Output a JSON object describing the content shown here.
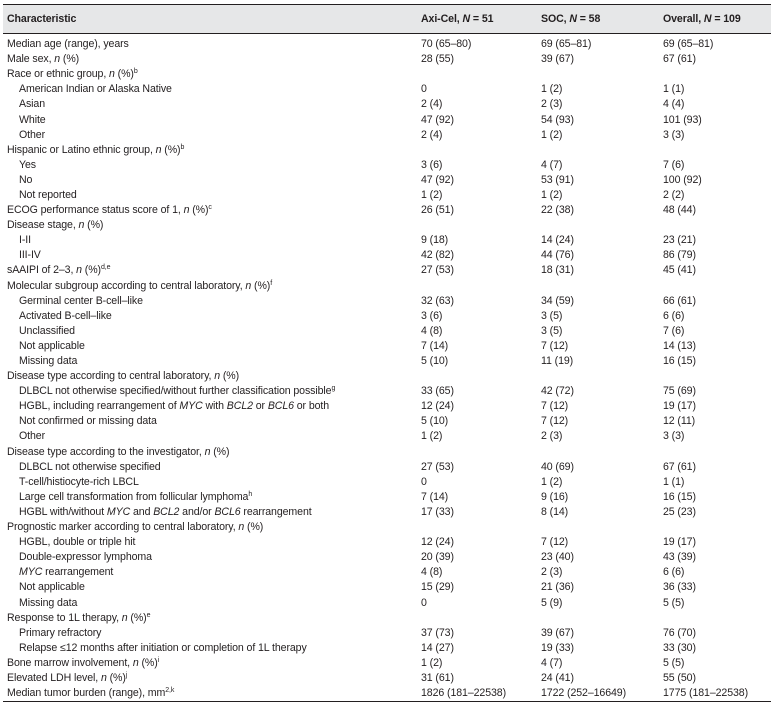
{
  "header": {
    "characteristic": "Characteristic",
    "axi": "Axi-Cel, ",
    "axi_n": "N",
    "axi_val": " = 51",
    "soc": "SOC, ",
    "soc_n": "N",
    "soc_val": " = 58",
    "overall": "Overall, ",
    "overall_n": "N",
    "overall_val": " = 109"
  },
  "rows": [
    {
      "label": "Median age (range), years",
      "axi": "70 (65–80)",
      "soc": "69 (65–81)",
      "overall": "69 (65–81)"
    },
    {
      "label": "Male sex, ",
      "label_it": "n",
      "label_post": " (%)",
      "axi": "28 (55)",
      "soc": "39 (67)",
      "overall": "67 (61)"
    },
    {
      "label": "Race or ethnic group, ",
      "label_it": "n",
      "label_post": " (%)",
      "sup": "b",
      "axi": "",
      "soc": "",
      "overall": ""
    },
    {
      "label": "American Indian or Alaska Native",
      "axi": "0",
      "soc": "1 (2)",
      "overall": "1 (1)"
    },
    {
      "label": "Asian",
      "axi": "2 (4)",
      "soc": "2 (3)",
      "overall": "4 (4)"
    },
    {
      "label": "White",
      "axi": "47 (92)",
      "soc": "54 (93)",
      "overall": "101 (93)"
    },
    {
      "label": "Other",
      "axi": "2 (4)",
      "soc": "1 (2)",
      "overall": "3 (3)"
    },
    {
      "label": "Hispanic or Latino ethnic group, ",
      "label_it": "n",
      "label_post": " (%)",
      "sup": "b",
      "axi": "",
      "soc": "",
      "overall": ""
    },
    {
      "label": "Yes",
      "axi": "3 (6)",
      "soc": "4 (7)",
      "overall": "7 (6)"
    },
    {
      "label": "No",
      "axi": "47 (92)",
      "soc": "53 (91)",
      "overall": "100 (92)"
    },
    {
      "label": "Not reported",
      "axi": "1 (2)",
      "soc": "1 (2)",
      "overall": "2 (2)"
    },
    {
      "label": "ECOG performance status score of 1, ",
      "label_it": "n",
      "label_post": " (%)",
      "sup": "c",
      "axi": "26 (51)",
      "soc": "22 (38)",
      "overall": "48 (44)"
    },
    {
      "label": "Disease stage, ",
      "label_it": "n",
      "label_post": " (%)",
      "axi": "",
      "soc": "",
      "overall": ""
    },
    {
      "label": "I-II",
      "axi": "9 (18)",
      "soc": "14 (24)",
      "overall": "23 (21)"
    },
    {
      "label": "III-IV",
      "axi": "42 (82)",
      "soc": "44 (76)",
      "overall": "86 (79)"
    },
    {
      "label": "sAAIPI of 2–3, ",
      "label_it": "n",
      "label_post": " (%)",
      "sup": "d,e",
      "axi": "27 (53)",
      "soc": "18 (31)",
      "overall": "45 (41)"
    },
    {
      "label": "Molecular subgroup according to central laboratory, ",
      "label_it": "n",
      "label_post": " (%)",
      "sup": "f",
      "axi": "",
      "soc": "",
      "overall": ""
    },
    {
      "label": "Germinal center B-cell–like",
      "axi": "32 (63)",
      "soc": "34 (59)",
      "overall": "66 (61)"
    },
    {
      "label": "Activated B-cell–like",
      "axi": "3 (6)",
      "soc": "3 (5)",
      "overall": "6 (6)"
    },
    {
      "label": "Unclassified",
      "axi": "4 (8)",
      "soc": "3 (5)",
      "overall": "7 (6)"
    },
    {
      "label": "Not applicable",
      "axi": "7 (14)",
      "soc": "7 (12)",
      "overall": "14 (13)"
    },
    {
      "label": "Missing data",
      "axi": "5 (10)",
      "soc": "11 (19)",
      "overall": "16 (15)"
    },
    {
      "label": "Disease type according to central laboratory, ",
      "label_it": "n",
      "label_post": " (%)",
      "axi": "",
      "soc": "",
      "overall": ""
    },
    {
      "label": "DLBCL not otherwise specified/without further classification possible",
      "sup": "g",
      "axi": "33 (65)",
      "soc": "42 (72)",
      "overall": "75 (69)"
    },
    {
      "label": "HGBL, including rearrangement of ",
      "label_it": "MYC",
      "label_post": " with ",
      "label_it2": "BCL2",
      "label_post2": " or ",
      "label_it3": "BCL6",
      "label_post3": " or both",
      "axi": "12 (24)",
      "soc": "7 (12)",
      "overall": "19 (17)"
    },
    {
      "label": "Not confirmed or missing data",
      "axi": "5 (10)",
      "soc": "7 (12)",
      "overall": "12 (11)"
    },
    {
      "label": "Other",
      "axi": "1 (2)",
      "soc": "2 (3)",
      "overall": "3 (3)"
    },
    {
      "label": "Disease type according to the investigator, ",
      "label_it": "n",
      "label_post": " (%)",
      "axi": "",
      "soc": "",
      "overall": ""
    },
    {
      "label": "DLBCL not otherwise specified",
      "axi": "27 (53)",
      "soc": "40 (69)",
      "overall": "67 (61)"
    },
    {
      "label": "T-cell/histiocyte-rich LBCL",
      "axi": "0",
      "soc": "1 (2)",
      "overall": "1 (1)"
    },
    {
      "label": "Large cell transformation from follicular lymphoma",
      "sup": "h",
      "axi": "7 (14)",
      "soc": "9 (16)",
      "overall": "16 (15)"
    },
    {
      "label": "HGBL with/without ",
      "label_it": "MYC",
      "label_post": " and ",
      "label_it2": "BCL2",
      "label_post2": " and/or ",
      "label_it3": "BCL6",
      "label_post3": " rearrangement",
      "axi": "17 (33)",
      "soc": "8 (14)",
      "overall": "25 (23)"
    },
    {
      "label": "Prognostic marker according to central laboratory, ",
      "label_it": "n",
      "label_post": " (%)",
      "axi": "",
      "soc": "",
      "overall": ""
    },
    {
      "label": "HGBL, double or triple hit",
      "axi": "12 (24)",
      "soc": "7 (12)",
      "overall": "19 (17)"
    },
    {
      "label": "Double-expressor lymphoma",
      "axi": "20 (39)",
      "soc": "23 (40)",
      "overall": "43 (39)"
    },
    {
      "label": "",
      "label_it": "MYC",
      "label_post": " rearrangement",
      "axi": "4 (8)",
      "soc": "2 (3)",
      "overall": "6 (6)"
    },
    {
      "label": "Not applicable",
      "axi": "15 (29)",
      "soc": "21 (36)",
      "overall": "36 (33)"
    },
    {
      "label": "Missing data",
      "axi": "0",
      "soc": "5 (9)",
      "overall": "5 (5)"
    },
    {
      "label": "Response to 1L therapy, ",
      "label_it": "n",
      "label_post": " (%)",
      "sup": "e",
      "axi": "",
      "soc": "",
      "overall": ""
    },
    {
      "label": "Primary refractory",
      "axi": "37 (73)",
      "soc": "39 (67)",
      "overall": "76 (70)"
    },
    {
      "label": "Relapse ≤12 months after initiation or completion of 1L therapy",
      "axi": "14 (27)",
      "soc": "19 (33)",
      "overall": "33 (30)"
    },
    {
      "label": "Bone marrow involvement, ",
      "label_it": "n",
      "label_post": " (%)",
      "sup": "i",
      "axi": "1 (2)",
      "soc": "4 (7)",
      "overall": "5 (5)"
    },
    {
      "label": "Elevated LDH level, ",
      "label_it": "n",
      "label_post": " (%)",
      "sup": "j",
      "axi": "31 (61)",
      "soc": "24 (41)",
      "overall": "55 (50)"
    },
    {
      "label": "Median tumor burden (range), mm",
      "sup": "2,k",
      "axi": "1826 (181–22538)",
      "soc": "1722 (252–16649)",
      "overall": "1775 (181–22538)"
    }
  ]
}
